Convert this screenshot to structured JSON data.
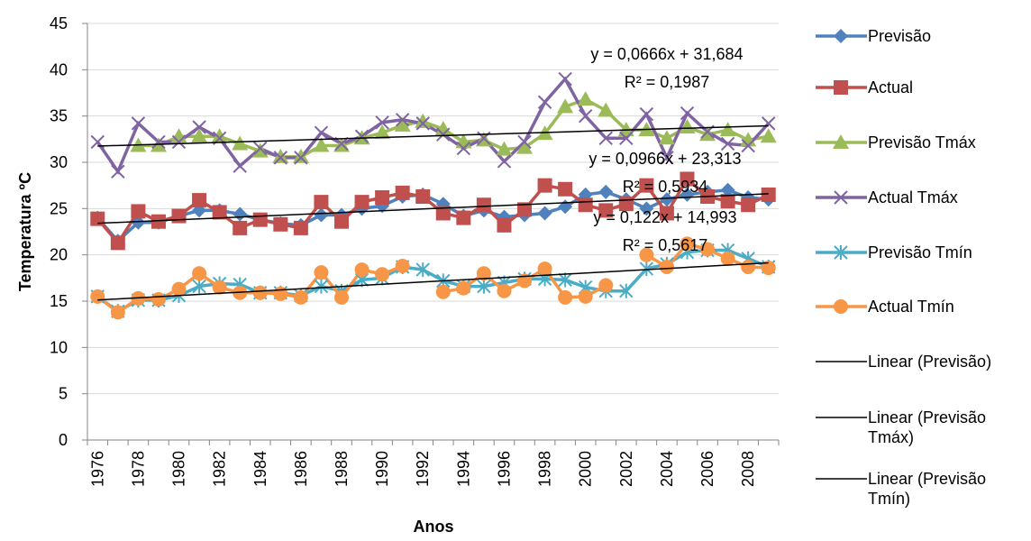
{
  "chart_data": {
    "type": "line",
    "x_label": "Anos",
    "y_label": "Temperatura ºC",
    "categories": [
      "1976",
      null,
      "1978",
      null,
      "1980",
      null,
      "1982",
      null,
      "1984",
      null,
      "1986",
      null,
      "1988",
      null,
      "1990",
      null,
      "1992",
      null,
      "1994",
      null,
      "1996",
      null,
      "1998",
      null,
      "2000",
      null,
      "2002",
      null,
      "2004",
      null,
      "2006",
      null,
      "2008",
      null
    ],
    "ylim": [
      0,
      45
    ],
    "yticks": [
      0,
      5,
      10,
      15,
      20,
      25,
      30,
      35,
      40,
      45
    ],
    "grid": true,
    "series": [
      {
        "name": "Previsão",
        "color": "#4f81bd",
        "marker": "diamond",
        "values": [
          24,
          21.5,
          23.5,
          23.5,
          24.2,
          24.8,
          24.8,
          24.4,
          23.8,
          23.4,
          23.2,
          24.3,
          24.3,
          25,
          25.3,
          26.3,
          26.5,
          25.5,
          24.2,
          24.8,
          24.1,
          24.3,
          24.5,
          25.2,
          26.5,
          26.8,
          26,
          25,
          26,
          26.5,
          26.8,
          27,
          26.2,
          26
        ]
      },
      {
        "name": "Actual",
        "color": "#c0504d",
        "marker": "square",
        "values": [
          23.9,
          21.3,
          24.7,
          23.6,
          24.2,
          25.9,
          24.6,
          22.9,
          23.8,
          23.3,
          22.9,
          25.7,
          23.6,
          25.7,
          26.2,
          26.7,
          26.3,
          24.5,
          24.0,
          25.4,
          23.2,
          24.9,
          27.5,
          27.1,
          25.4,
          24.8,
          25.5,
          27.5,
          24.5,
          28.2,
          26.3,
          25.8,
          25.4,
          26.5
        ]
      },
      {
        "name": "Previsão Tmáx",
        "color": "#9bbb59",
        "marker": "triangle",
        "values": [
          null,
          null,
          31.8,
          31.8,
          32.8,
          32.8,
          32.8,
          32,
          31.2,
          30.6,
          30.6,
          31.8,
          31.8,
          32.6,
          33.2,
          34,
          34.4,
          33.6,
          32.2,
          32.4,
          31.4,
          31.6,
          33.1,
          36,
          36.8,
          35.6,
          33.5,
          33.5,
          32.6,
          33.8,
          33,
          33.5,
          32.4,
          32.8
        ]
      },
      {
        "name": "Actual Tmáx",
        "color": "#8064a2",
        "marker": "x",
        "values": [
          32.2,
          29,
          34.2,
          32.2,
          32.2,
          33.8,
          32.6,
          29.6,
          31.5,
          30.5,
          30.5,
          33.2,
          32,
          32.8,
          34.3,
          34.6,
          34.2,
          33,
          31.5,
          32.6,
          30.1,
          32.2,
          36.5,
          39,
          35,
          32.6,
          32.6,
          35.2,
          30.5,
          35.3,
          33.3,
          32,
          31.8,
          34.2
        ]
      },
      {
        "name": "Previsão Tmín",
        "color": "#4bacc6",
        "marker": "star",
        "values": [
          15.5,
          13.9,
          15.1,
          15.1,
          15.6,
          16.6,
          16.9,
          16.8,
          15.9,
          15.9,
          15.6,
          16.6,
          16.1,
          17.3,
          17.5,
          18.7,
          18.4,
          17.2,
          16.6,
          16.6,
          17,
          17.4,
          17.4,
          17.3,
          16.5,
          16.1,
          16.1,
          18.5,
          19,
          20.3,
          20.5,
          20.5,
          19.6,
          18.7
        ]
      },
      {
        "name": "Actual Tmín",
        "color": "#f79646",
        "marker": "circle",
        "values": [
          15.5,
          13.8,
          15.3,
          15.2,
          16.3,
          18,
          16.5,
          15.9,
          15.9,
          15.8,
          15.4,
          18.1,
          15.4,
          18.4,
          17.9,
          18.8,
          null,
          16,
          16.4,
          18,
          16.1,
          17.2,
          18.5,
          15.4,
          15.5,
          16.7,
          null,
          20,
          18.7,
          21.2,
          20.6,
          19.6,
          18.7,
          18.6
        ]
      }
    ],
    "trendlines": [
      {
        "name": "Linear (Previsão)",
        "color": "#000000",
        "start": 31.75,
        "end": 33.95,
        "equation": "y = 0,0666x + 31,684",
        "r_squared": "R² = 0,1987"
      },
      {
        "name": "Linear (Previsão Tmáx)",
        "color": "#000000",
        "start": 23.41,
        "end": 26.6,
        "equation": "y = 0,0966x + 23,313",
        "r_squared": "R² = 0,5934"
      },
      {
        "name": "Linear (Previsão Tmín)",
        "color": "#000000",
        "start": 15.12,
        "end": 19.14,
        "equation": "y = 0,122x + 14,993",
        "r_squared": "R² = 0,5617"
      }
    ]
  }
}
